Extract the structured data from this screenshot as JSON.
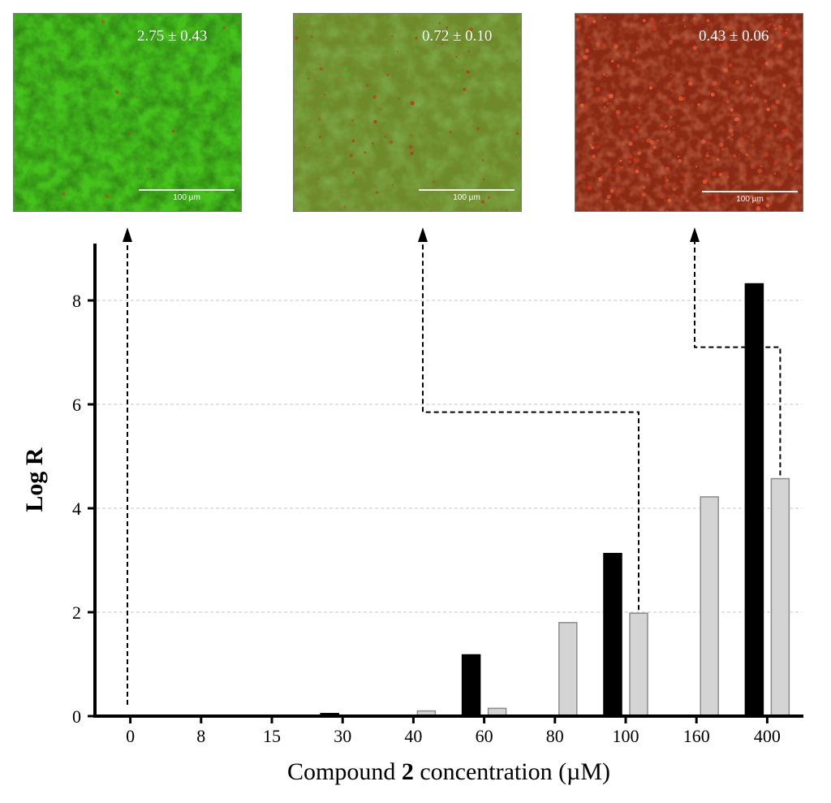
{
  "micrographs": [
    {
      "name": "micrograph-0",
      "ratio": "2.75 ± 0.43",
      "scale_bar": "100 µm",
      "colors": {
        "base": "#45c21c",
        "tint": "#30a812",
        "speck": "#d0351a"
      }
    },
    {
      "name": "micrograph-100",
      "ratio": "0.72 ± 0.10",
      "scale_bar": "100 µm",
      "colors": {
        "base": "#6f8a2a",
        "tint": "#4fae2a",
        "speck": "#b8361a"
      }
    },
    {
      "name": "micrograph-400",
      "ratio": "0.43 ± 0.06",
      "scale_bar": "100 µm",
      "colors": {
        "base": "#8a2a14",
        "tint": "#c9381e",
        "speck": "#f0603a"
      }
    }
  ],
  "chart_data": {
    "type": "bar",
    "categories": [
      "0",
      "8",
      "15",
      "30",
      "40",
      "60",
      "80",
      "100",
      "160",
      "400"
    ],
    "series": [
      {
        "values": [
          0,
          0,
          0,
          0.05,
          0,
          1.18,
          0,
          3.13,
          0,
          8.32
        ],
        "color": "#000000"
      },
      {
        "values": [
          0,
          0,
          0,
          0,
          0.1,
          0.15,
          1.8,
          1.98,
          4.22,
          4.57
        ],
        "color": "#d4d4d4"
      }
    ],
    "yticks": [
      "0",
      "2",
      "4",
      "6",
      "8"
    ],
    "ylim": [
      0,
      9
    ],
    "ylabel": "Log R",
    "xlabel_parts": [
      "Compound ",
      "2",
      " concentration (µM)"
    ],
    "grid": "horizontal dashed",
    "links": [
      {
        "from_category": "0",
        "to_micrograph": 0
      },
      {
        "from_category": "100",
        "to_micrograph": 1
      },
      {
        "from_category": "400",
        "to_micrograph": 2
      }
    ]
  }
}
